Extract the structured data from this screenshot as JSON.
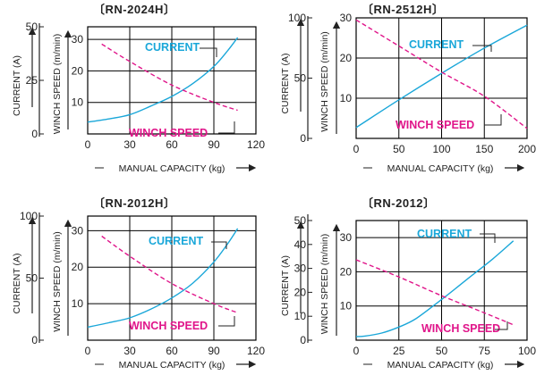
{
  "colors": {
    "current": "#1aa7d9",
    "winch_speed": "#e0158a",
    "axis": "#222222"
  },
  "chart_data": [
    {
      "type": "line",
      "title": "〔RN-2024H〕",
      "xlabel": "MANUAL CAPACITY (kg)",
      "ylabel_left": "CURRENT (A)",
      "ylabel_inner": "WINCH SPEED (m/min)",
      "x_ticks": [
        "0",
        "30",
        "60",
        "90",
        "120"
      ],
      "x_range": [
        0,
        120
      ],
      "inner_ticks": [
        "10",
        "20",
        "30"
      ],
      "inner_range": [
        0,
        34
      ],
      "outer_ticks": [
        "0",
        "25",
        "50"
      ],
      "outer_range": [
        0,
        50
      ],
      "series": [
        {
          "name": "CURRENT",
          "axis": "outer",
          "style": "solid",
          "x": [
            0,
            15,
            30,
            45,
            60,
            75,
            90,
            100,
            107
          ],
          "y": [
            5.5,
            7,
            9,
            13,
            17.5,
            23.5,
            31.5,
            39,
            45
          ]
        },
        {
          "name": "WINCH SPEED",
          "axis": "inner",
          "style": "dashed",
          "x": [
            10,
            30,
            60,
            90,
            107
          ],
          "y": [
            28.5,
            23,
            15.5,
            10,
            7.5
          ]
        }
      ]
    },
    {
      "type": "line",
      "title": "〔RN-2512H〕",
      "xlabel": "MANUAL CAPACITY (kg)",
      "ylabel_left": "CURRENT (A)",
      "ylabel_inner": "WINCH SPEED (m/min)",
      "x_ticks": [
        "0",
        "50",
        "100",
        "150",
        "200"
      ],
      "x_range": [
        0,
        200
      ],
      "inner_ticks": [
        "10",
        "20",
        "30"
      ],
      "inner_range": [
        0,
        30
      ],
      "outer_ticks": [
        "0",
        "50",
        "100"
      ],
      "outer_range": [
        0,
        100
      ],
      "series": [
        {
          "name": "CURRENT",
          "axis": "outer",
          "style": "solid",
          "x": [
            0,
            50,
            100,
            150,
            200
          ],
          "y": [
            9,
            32,
            54,
            75,
            94
          ]
        },
        {
          "name": "WINCH SPEED",
          "axis": "inner",
          "style": "dashed",
          "x": [
            0,
            50,
            100,
            150,
            200
          ],
          "y": [
            29.5,
            23,
            16.5,
            10.5,
            2.5
          ]
        }
      ]
    },
    {
      "type": "line",
      "title": "〔RN-2012H〕",
      "xlabel": "MANUAL CAPACITY (kg)",
      "ylabel_left": "CURRENT (A)",
      "ylabel_inner": "WINCH SPEED (m/min)",
      "x_ticks": [
        "0",
        "30",
        "60",
        "90",
        "120"
      ],
      "x_range": [
        0,
        120
      ],
      "inner_ticks": [
        "10",
        "20",
        "30"
      ],
      "inner_range": [
        0,
        34
      ],
      "outer_ticks": [
        "0",
        "50",
        "100"
      ],
      "outer_range": [
        0,
        100
      ],
      "series": [
        {
          "name": "CURRENT",
          "axis": "outer",
          "style": "solid",
          "x": [
            0,
            15,
            30,
            45,
            60,
            75,
            90,
            100,
            107
          ],
          "y": [
            10.5,
            14,
            18,
            25,
            34,
            46,
            63,
            78,
            90
          ]
        },
        {
          "name": "WINCH SPEED",
          "axis": "inner",
          "style": "dashed",
          "x": [
            10,
            30,
            60,
            90,
            107
          ],
          "y": [
            28.5,
            23,
            15.5,
            10,
            7.5
          ]
        }
      ]
    },
    {
      "type": "line",
      "title": "〔RN-2012〕",
      "xlabel": "MANUAL CAPACITY (kg)",
      "ylabel_left": "CURRENT (A)",
      "ylabel_inner": "WINCH SPEED (m/min)",
      "x_ticks": [
        "0",
        "25",
        "50",
        "75",
        "100"
      ],
      "x_range": [
        0,
        100
      ],
      "inner_ticks": [
        "10",
        "20",
        "30"
      ],
      "inner_range": [
        0,
        35
      ],
      "outer_ticks": [
        "0",
        "10",
        "20",
        "30",
        "40",
        "50"
      ],
      "outer_range": [
        0,
        50
      ],
      "series": [
        {
          "name": "CURRENT",
          "axis": "outer",
          "style": "solid",
          "x": [
            0,
            5,
            15,
            25,
            35,
            50,
            65,
            80,
            92
          ],
          "y": [
            1.5,
            1.7,
            3,
            5.5,
            9,
            17,
            25.5,
            34,
            41.5
          ]
        },
        {
          "name": "WINCH SPEED",
          "axis": "inner",
          "style": "dashed",
          "x": [
            0,
            25,
            50,
            75,
            92
          ],
          "y": [
            23.5,
            18.5,
            13,
            8,
            4.5
          ]
        }
      ]
    }
  ]
}
